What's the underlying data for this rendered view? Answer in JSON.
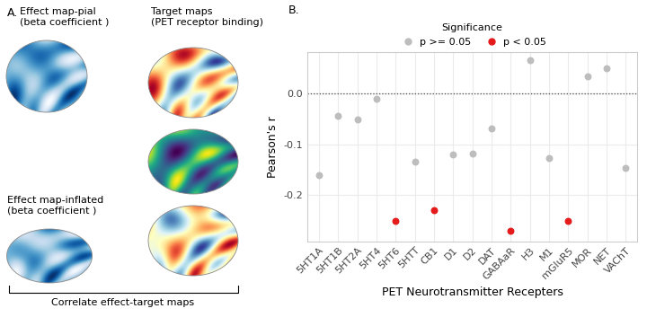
{
  "panel_a": {
    "label": "A.",
    "effect_pial": [
      "Effect map-pial",
      "(beta coefficient )"
    ],
    "target": [
      "Target maps",
      "(PET receptor binding)"
    ],
    "effect_inflated": [
      "Effect map-inflated",
      "(beta coefficient )"
    ],
    "bracket": "Correlate effect-target maps"
  },
  "chart_data": {
    "type": "scatter",
    "panel_label": "B.",
    "x_label": "PET Neurotransmitter Recepters",
    "y_label": "Pearson's r",
    "categories": [
      "5HT1A",
      "5HT1B",
      "5HT2A",
      "5HT4",
      "5HT6",
      "5HTT",
      "CB1",
      "D1",
      "D2",
      "DAT",
      "GABAaR",
      "H3",
      "M1",
      "mGluR5",
      "MOR",
      "NET",
      "VAChT"
    ],
    "series": [
      {
        "name": "p >= 0.05",
        "color": "#bdbdbd",
        "marker": "o",
        "values": [
          -0.16,
          -0.045,
          -0.052,
          -0.012,
          null,
          -0.135,
          null,
          -0.12,
          -0.118,
          -0.07,
          null,
          0.065,
          -0.128,
          null,
          0.032,
          0.048,
          -0.147
        ]
      },
      {
        "name": "p < 0.05",
        "color": "#e41a1c",
        "marker": "o",
        "values": [
          null,
          null,
          null,
          null,
          -0.25,
          null,
          -0.23,
          null,
          null,
          null,
          -0.27,
          null,
          null,
          -0.25,
          null,
          null,
          null
        ]
      }
    ],
    "legend_title": "Significance",
    "legend": "upper center",
    "ylim": [
      -0.29,
      0.08
    ],
    "yticks": [
      -0.2,
      -0.1,
      {
        "value": 0,
        "label": "0.0"
      }
    ],
    "grid": true
  }
}
